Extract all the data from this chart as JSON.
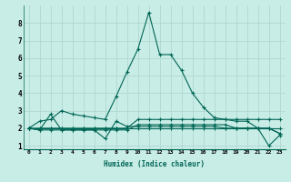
{
  "xlabel": "Humidex (Indice chaleur)",
  "bg_color": "#c8ece6",
  "grid_color": "#b0d8d0",
  "line_color": "#006655",
  "xlim": [
    -0.5,
    23.5
  ],
  "ylim": [
    0.8,
    9.0
  ],
  "xticks": [
    0,
    1,
    2,
    3,
    4,
    5,
    6,
    7,
    8,
    9,
    10,
    11,
    12,
    13,
    14,
    15,
    16,
    17,
    18,
    19,
    20,
    21,
    22,
    23
  ],
  "yticks": [
    1,
    2,
    3,
    4,
    5,
    6,
    7,
    8
  ],
  "series": [
    [
      2.0,
      2.4,
      2.5,
      3.0,
      2.8,
      2.7,
      2.6,
      2.5,
      3.8,
      5.2,
      6.5,
      8.6,
      6.2,
      6.2,
      5.3,
      4.0,
      3.2,
      2.6,
      2.5,
      2.4,
      2.4,
      2.0,
      2.0,
      1.7
    ],
    [
      2.0,
      1.9,
      1.9,
      1.9,
      1.9,
      1.9,
      1.9,
      1.4,
      2.4,
      2.1,
      2.1,
      2.1,
      2.1,
      2.1,
      2.1,
      2.1,
      2.1,
      2.1,
      2.0,
      2.0,
      2.0,
      2.0,
      2.0,
      1.7
    ],
    [
      2.0,
      1.9,
      2.8,
      1.9,
      1.9,
      1.9,
      1.9,
      1.9,
      1.9,
      1.9,
      2.2,
      2.2,
      2.2,
      2.2,
      2.2,
      2.2,
      2.2,
      2.2,
      2.2,
      2.0,
      2.0,
      2.0,
      1.0,
      1.6
    ],
    [
      2.0,
      2.0,
      2.0,
      2.0,
      2.0,
      2.0,
      2.0,
      2.0,
      2.0,
      2.0,
      2.0,
      2.0,
      2.0,
      2.0,
      2.0,
      2.0,
      2.0,
      2.0,
      2.0,
      2.0,
      2.0,
      2.0,
      2.0,
      2.0
    ],
    [
      2.0,
      2.0,
      2.0,
      2.0,
      2.0,
      2.0,
      2.0,
      2.0,
      2.0,
      2.0,
      2.5,
      2.5,
      2.5,
      2.5,
      2.5,
      2.5,
      2.5,
      2.5,
      2.5,
      2.5,
      2.5,
      2.5,
      2.5,
      2.5
    ]
  ]
}
